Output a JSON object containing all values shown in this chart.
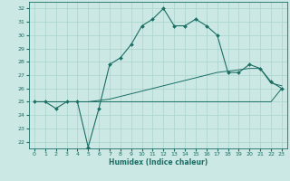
{
  "xlabel": "Humidex (Indice chaleur)",
  "bg_color": "#cce8e4",
  "grid_color": "#a8d4cc",
  "line_color": "#1a6e64",
  "x_hours": [
    0,
    1,
    2,
    3,
    4,
    5,
    6,
    7,
    8,
    9,
    10,
    11,
    12,
    13,
    14,
    15,
    16,
    17,
    18,
    19,
    20,
    21,
    22,
    23
  ],
  "main_line": [
    25.0,
    25.0,
    24.5,
    25.0,
    25.0,
    21.6,
    24.5,
    27.8,
    28.3,
    29.3,
    30.7,
    31.2,
    32.0,
    30.7,
    30.7,
    31.2,
    30.7,
    30.0,
    27.2,
    27.2,
    27.8,
    27.5,
    26.5,
    26.0
  ],
  "line_flat": [
    25.0,
    25.0,
    25.0,
    25.0,
    25.0,
    25.0,
    25.0,
    25.0,
    25.0,
    25.0,
    25.0,
    25.0,
    25.0,
    25.0,
    25.0,
    25.0,
    25.0,
    25.0,
    25.0,
    25.0,
    25.0,
    25.0,
    25.0,
    26.0
  ],
  "line_diag": [
    25.0,
    25.0,
    25.0,
    25.0,
    25.0,
    25.0,
    25.1,
    25.2,
    25.4,
    25.6,
    25.8,
    26.0,
    26.2,
    26.4,
    26.6,
    26.8,
    27.0,
    27.2,
    27.3,
    27.4,
    27.5,
    27.5,
    26.4,
    26.2
  ],
  "ylim": [
    21.5,
    32.5
  ],
  "yticks": [
    22,
    23,
    24,
    25,
    26,
    27,
    28,
    29,
    30,
    31,
    32
  ],
  "xlim": [
    -0.5,
    23.5
  ]
}
